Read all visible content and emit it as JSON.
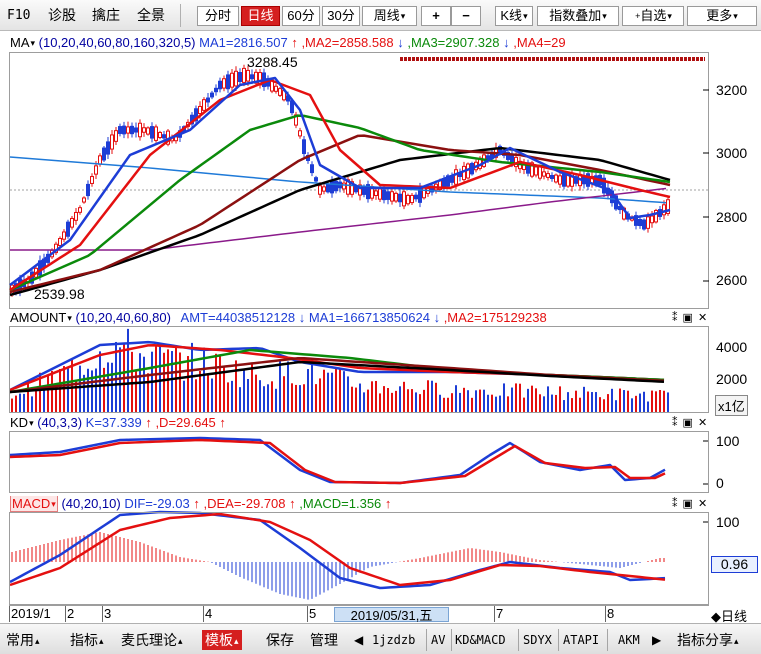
{
  "toolbar": {
    "f10": "F10",
    "diagnose": "诊股",
    "catch": "擒庄",
    "panorama": "全景",
    "tabs": [
      "分时",
      "日线",
      "60分",
      "30分",
      "周线"
    ],
    "active_tab": "日线",
    "zoom_in": "+",
    "zoom_out": "−",
    "kline": "K线",
    "index_overlay": "指数叠加",
    "watchlist": "自选",
    "more": "更多"
  },
  "price_panel": {
    "indicator": "MA",
    "params": "(10,20,40,60,80,160,320,5)",
    "ma1": "MA1=2816.507",
    "ma2": ",MA2=2858.588",
    "ma3": ",MA3=2907.328",
    "ma4": ",MA4=29",
    "arrow_up": "↑",
    "arrow_down": "↓",
    "high_label": "3288.45",
    "low_label": "2539.98",
    "y_ticks": [
      "3200",
      "3000",
      "2800",
      "2600"
    ]
  },
  "amount_panel": {
    "indicator": "AMOUNT",
    "params": "(10,20,40,60,80)",
    "amt": "AMT=44038512128",
    "ma1": "MA1=166713850624",
    "ma2": ",MA2=175129238",
    "y_ticks": [
      "4000",
      "2000"
    ],
    "unit": "x1亿"
  },
  "kd_panel": {
    "indicator": "KD",
    "params": "(40,3,3)",
    "k": "K=37.339",
    "d": ",D=29.645",
    "y_ticks": [
      "100",
      "0"
    ]
  },
  "macd_panel": {
    "indicator": "MACD",
    "params": "(40,20,10)",
    "dif": "DIF=-29.03",
    "dea": ",DEA=-29.708",
    "macd": ",MACD=1.356",
    "y_ticks": [
      "100"
    ],
    "value_tag": "0.96"
  },
  "date_axis": {
    "labels": [
      "2019/1",
      "2",
      "3",
      "4",
      "5",
      "7",
      "8"
    ],
    "cursor_date": "2019/05/31,五",
    "period": "◆日线"
  },
  "bottom_menu": {
    "items": [
      "常用",
      "指标",
      "麦氏理论",
      "模板",
      "保存",
      "管理",
      "1jzdzb",
      "AV",
      "KD&MACD",
      "SDYX",
      "ATAPI",
      "AKM",
      "指标分享"
    ]
  },
  "colors": {
    "candle_up": "#e41010",
    "candle_down": "#1d3dd6",
    "ma1": "#1d3dd6",
    "ma2": "#e41010",
    "ma3": "#0b8a0b",
    "ma4": "#8b1010",
    "ma5": "#000000",
    "ma160": "#1f7ad8",
    "ma320": "#8a1a8a"
  }
}
